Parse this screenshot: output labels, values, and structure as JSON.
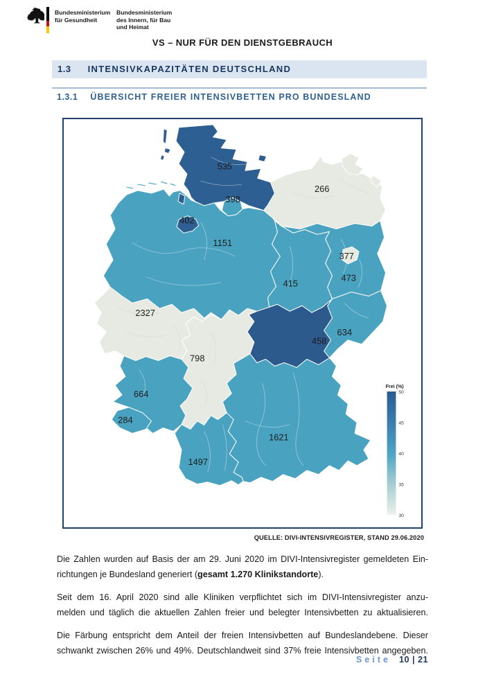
{
  "header": {
    "ministry1": [
      "Bundesministerium",
      "für Gesundheit"
    ],
    "ministry2": [
      "Bundesministerium",
      "des Innern, für Bau",
      "und Heimat"
    ],
    "classification": "VS – NUR FÜR DEN DIENSTGEBRAUCH",
    "flag_colors": [
      "#000000",
      "#d20f0f",
      "#f7c800"
    ]
  },
  "section": {
    "number": "1.3",
    "title": "INTENSIVKAPAZITÄTEN DEUTSCHLAND"
  },
  "subsection": {
    "number": "1.3.1",
    "title": "ÜBERSICHT FREIER INTENSIVBETTEN PRO BUNDESLAND"
  },
  "map": {
    "source": "QUELLE: DIVI-INTENSIVREGISTER, STAND 29.06.2020",
    "palette": {
      "dark_blue": "#2e5f93",
      "teal": "#4aa2c1",
      "light_gray": "#e7eae2"
    },
    "legend": {
      "title": "Frei (%)",
      "ticks": [
        "50",
        "45",
        "40",
        "35",
        "30"
      ],
      "gradient": [
        "#2a5b90",
        "#3b7dab",
        "#4ba4c3",
        "#a6ced1",
        "#ecf1ea"
      ]
    },
    "states": [
      {
        "id": "SH",
        "name": "Schleswig-Holstein",
        "value": "535",
        "color": "#2e5f93"
      },
      {
        "id": "HH",
        "name": "Hamburg",
        "value": "398",
        "color": "#4aa2c1"
      },
      {
        "id": "MV",
        "name": "Mecklenburg-Vorpommern",
        "value": "266",
        "color": "#e7eae2"
      },
      {
        "id": "HB",
        "name": "Bremen",
        "value": "402",
        "color": "#2e5f93"
      },
      {
        "id": "NI",
        "name": "Niedersachsen",
        "value": "1151",
        "color": "#4aa2c1"
      },
      {
        "id": "BE",
        "name": "Berlin",
        "value": "377",
        "color": "#e7eae2"
      },
      {
        "id": "BB",
        "name": "Brandenburg",
        "value": "473",
        "color": "#4aa2c1"
      },
      {
        "id": "ST",
        "name": "Sachsen-Anhalt",
        "value": "415",
        "color": "#4aa2c1"
      },
      {
        "id": "NW",
        "name": "Nordrhein-Westfalen",
        "value": "2327",
        "color": "#e7eae2"
      },
      {
        "id": "SN",
        "name": "Sachsen",
        "value": "634",
        "color": "#4aa2c1"
      },
      {
        "id": "TH",
        "name": "Thüringen",
        "value": "458",
        "color": "#2d5a8c"
      },
      {
        "id": "HE",
        "name": "Hessen",
        "value": "798",
        "color": "#e7eae2"
      },
      {
        "id": "RP",
        "name": "Rheinland-Pfalz",
        "value": "664",
        "color": "#4aa2c1"
      },
      {
        "id": "SL",
        "name": "Saarland",
        "value": "284",
        "color": "#4aa2c1"
      },
      {
        "id": "BY",
        "name": "Bayern",
        "value": "1621",
        "color": "#4aa2c1"
      },
      {
        "id": "BW",
        "name": "Baden-Württemberg",
        "value": "1497",
        "color": "#4aa2c1"
      }
    ]
  },
  "paragraphs": {
    "p1": {
      "line1": "Die Zahlen wurden auf Basis der am 29. Juni 2020 im DIVI-Intensivregister gemeldeten Ein-",
      "line2_pre": "richtungen je Bundesland generiert (",
      "line2_bold": "gesamt 1.270 Klinikstandorte",
      "line2_post": ")."
    },
    "p2": {
      "line1": "Seit dem 16. April 2020 sind alle Kliniken verpflichtet sich im DIVI-Intensivregister anzu-",
      "line2": "melden und täglich die aktuellen Zahlen freier und belegter Intensivbetten zu aktualisieren."
    },
    "p3": {
      "line1": "Die Färbung entspricht dem Anteil der freien Intensivbetten auf Bundeslandebene. Dieser",
      "line2": "schwankt zwischen 26% und 49%. Deutschlandweit sind 37% freie Intensivbetten angegeben."
    }
  },
  "footer": {
    "label": "Seite",
    "page": "10 | 21"
  }
}
